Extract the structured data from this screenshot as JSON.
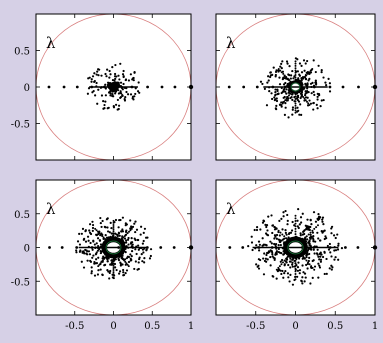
{
  "figure": {
    "background": "#d6d0e6"
  },
  "chart_data": [
    {
      "type": "scatter",
      "panel": "top-left",
      "label": "λ",
      "xlim": [
        -1,
        1
      ],
      "ylim": [
        -1,
        1
      ],
      "xticks": [],
      "yticks": [
        "0.5",
        "0",
        "-0.5"
      ],
      "unit_circle_color": "#d98080",
      "cluster": {
        "x": 0.0,
        "y": 0.0,
        "radius": 0.05,
        "ring": false,
        "outer_radius": 0.35,
        "n_points": 150,
        "seed": 1
      },
      "marked_points": [
        [
          1,
          0
        ]
      ]
    },
    {
      "type": "scatter",
      "panel": "top-right",
      "label": "λ",
      "xlim": [
        -1,
        1
      ],
      "ylim": [
        -1,
        1
      ],
      "xticks": [],
      "yticks": [],
      "unit_circle_color": "#d98080",
      "cluster": {
        "x": 0.0,
        "y": 0.0,
        "radius": 0.07,
        "ring": true,
        "outer_radius": 0.45,
        "n_points": 260,
        "seed": 2
      },
      "marked_points": [
        [
          1,
          0
        ]
      ]
    },
    {
      "type": "scatter",
      "panel": "bottom-left",
      "label": "λ",
      "xlim": [
        -1,
        1
      ],
      "ylim": [
        -1,
        1
      ],
      "xticks": [
        "-0.5",
        "0",
        "0.5",
        "1"
      ],
      "yticks": [
        "0.5",
        "0",
        "-0.5"
      ],
      "unit_circle_color": "#d98080",
      "cluster": {
        "x": 0.0,
        "y": 0.0,
        "radius": 0.12,
        "ring": true,
        "outer_radius": 0.5,
        "n_points": 320,
        "seed": 3
      },
      "marked_points": [
        [
          1,
          0
        ]
      ]
    },
    {
      "type": "scatter",
      "panel": "bottom-right",
      "label": "λ",
      "xlim": [
        -1,
        1
      ],
      "ylim": [
        -1,
        1
      ],
      "xticks": [
        "-0.5",
        "0",
        "0.5",
        "1"
      ],
      "yticks": [],
      "unit_circle_color": "#d98080",
      "cluster": {
        "x": 0.0,
        "y": 0.0,
        "radius": 0.12,
        "ring": true,
        "outer_radius": 0.6,
        "n_points": 420,
        "seed": 4
      },
      "marked_points": [
        [
          1,
          0
        ]
      ]
    }
  ]
}
